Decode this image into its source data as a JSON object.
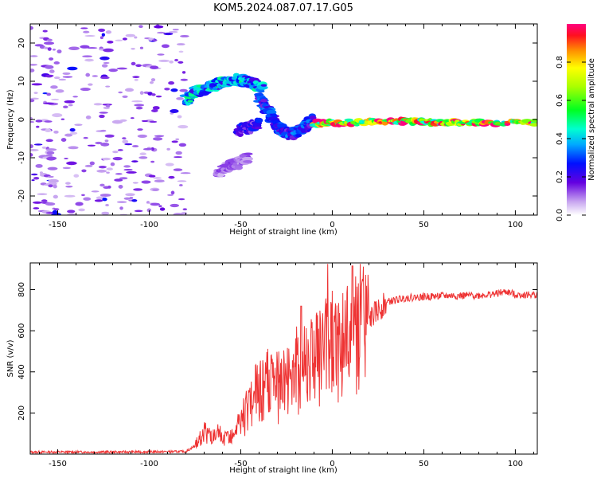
{
  "figure": {
    "title": "KOM5.2024.087.07.17.G05"
  },
  "chart_data": [
    {
      "type": "heatmap",
      "xlabel": "Height of straight line (km)",
      "ylabel": "Frequency (Hz)",
      "xlim": [
        -165,
        112
      ],
      "ylim": [
        -25,
        25
      ],
      "xticks": [
        -150,
        -100,
        -50,
        0,
        50,
        100
      ],
      "yticks": [
        -20,
        -10,
        0,
        10,
        20
      ],
      "colorbar": {
        "label": "Normalized spectral amplitude",
        "range": [
          0,
          1
        ],
        "ticks": [
          "0.0",
          "0.2",
          "0.4",
          "0.6",
          "0.8"
        ],
        "tick_values": [
          0.0,
          0.2,
          0.4,
          0.6,
          0.8
        ]
      },
      "features": [
        {
          "label": "noise region",
          "x_range": [
            -165,
            -80
          ],
          "y_range": [
            -25,
            25
          ],
          "amplitude": 0.08
        },
        {
          "label": "rising arc",
          "points": [
            [
              -80,
              5
            ],
            [
              -75,
              7
            ],
            [
              -65,
              9
            ],
            [
              -55,
              10.5
            ],
            [
              -45,
              10
            ],
            [
              -38,
              8
            ]
          ],
          "amplitude": 0.35
        },
        {
          "label": "descending tail",
          "points": [
            [
              -40,
              6
            ],
            [
              -35,
              2
            ],
            [
              -30,
              -2
            ],
            [
              -25,
              -4
            ],
            [
              -18,
              -3
            ],
            [
              -10,
              0
            ]
          ],
          "amplitude": 0.25
        },
        {
          "label": "lower branch",
          "points": [
            [
              -52,
              -3
            ],
            [
              -45,
              -2
            ],
            [
              -40,
              -1
            ]
          ],
          "amplitude": 0.2
        },
        {
          "label": "faint lower trace",
          "points": [
            [
              -63,
              -14
            ],
            [
              -55,
              -12
            ],
            [
              -45,
              -10
            ]
          ],
          "amplitude": 0.1
        },
        {
          "label": "steady signal",
          "points": [
            [
              -10,
              -1
            ],
            [
              0,
              -1
            ],
            [
              20,
              -0.5
            ],
            [
              40,
              -0.5
            ],
            [
              60,
              -0.8
            ],
            [
              80,
              -0.8
            ],
            [
              112,
              -0.8
            ]
          ],
          "amplitude": 0.75
        }
      ]
    },
    {
      "type": "line",
      "xlabel": "Height of straight line (km)",
      "ylabel": "SNR (v/v)",
      "xlim": [
        -165,
        112
      ],
      "ylim": [
        0,
        930
      ],
      "xticks": [
        -150,
        -100,
        -50,
        0,
        50,
        100
      ],
      "yticks": [
        200,
        400,
        600,
        800
      ],
      "color": "#ee3333",
      "series": [
        {
          "x": [
            -165,
            -120,
            -80,
            -75,
            -70,
            -65,
            -60,
            -55,
            -50,
            -45,
            -40,
            -35,
            -30,
            -25,
            -20,
            -15,
            -10,
            -5,
            0,
            5,
            10,
            15,
            20,
            25,
            30,
            40,
            50,
            60,
            70,
            80,
            90,
            95,
            100,
            112
          ],
          "values": [
            10,
            10,
            12,
            40,
            110,
            80,
            70,
            90,
            150,
            250,
            300,
            340,
            320,
            360,
            400,
            430,
            470,
            480,
            520,
            540,
            570,
            600,
            650,
            700,
            740,
            760,
            765,
            770,
            770,
            772,
            780,
            790,
            775,
            775
          ]
        }
      ]
    }
  ]
}
